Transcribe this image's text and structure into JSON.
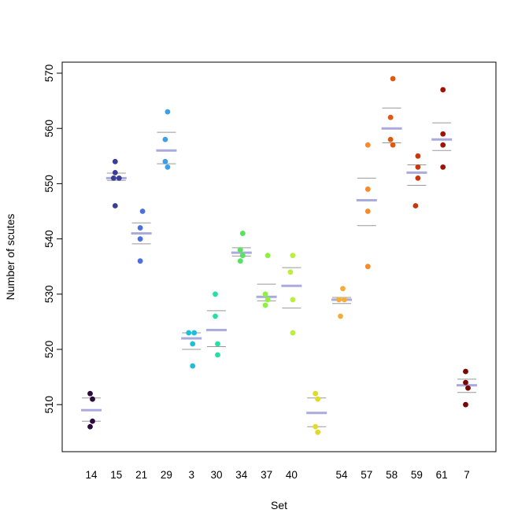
{
  "chart_data": {
    "type": "strip",
    "title": "",
    "xlabel": "Set",
    "ylabel": "Number of scutes",
    "ylim": [
      502,
      572
    ],
    "yticks": [
      510,
      520,
      530,
      540,
      550,
      560,
      570
    ],
    "grid": false,
    "legend": "none",
    "mean_line_color": "#aaaadd",
    "sd_line_color": "#999999",
    "groups": [
      {
        "label": "14",
        "color": "#2d0a3c",
        "points": [
          506,
          507,
          511,
          512
        ],
        "mean": 509,
        "sd_low": 507,
        "sd_high": 511.2
      },
      {
        "label": "15",
        "color": "#3b3e96",
        "points": [
          546,
          551,
          551,
          552,
          554
        ],
        "mean": 551,
        "sd_low": 550.6,
        "sd_high": 551.9
      },
      {
        "label": "21",
        "color": "#4a6fe3",
        "points": [
          536,
          540,
          542,
          545
        ],
        "mean": 541,
        "sd_low": 539.1,
        "sd_high": 542.9
      },
      {
        "label": "29",
        "color": "#3c9fe8",
        "points": [
          553,
          554,
          558,
          563
        ],
        "mean": 556,
        "sd_low": 553.6,
        "sd_high": 559.3
      },
      {
        "label": "3",
        "color": "#1fbed6",
        "points": [
          517,
          521,
          523,
          523
        ],
        "mean": 522,
        "sd_low": 520,
        "sd_high": 523
      },
      {
        "label": "30",
        "color": "#26dfa5",
        "points": [
          519,
          521,
          526,
          530
        ],
        "mean": 523.5,
        "sd_low": 520.5,
        "sd_high": 527
      },
      {
        "label": "34",
        "color": "#52e35f",
        "points": [
          536,
          537,
          538,
          541
        ],
        "mean": 537.5,
        "sd_low": 536.9,
        "sd_high": 538.4
      },
      {
        "label": "37",
        "color": "#8ef23c",
        "points": [
          528,
          529,
          530,
          537
        ],
        "mean": 529.5,
        "sd_low": 528.8,
        "sd_high": 531.8
      },
      {
        "label": "40",
        "color": "#b8f03a",
        "points": [
          523,
          529,
          534,
          537
        ],
        "mean": 531.5,
        "sd_low": 527.5,
        "sd_high": 534.8
      },
      {
        "label": "",
        "color": "#e0da29",
        "points": [
          505,
          506,
          511,
          512
        ],
        "mean": 508.5,
        "sd_low": 506,
        "sd_high": 511.2
      },
      {
        "label": "54",
        "color": "#f4ad37",
        "points": [
          526,
          529,
          529,
          531
        ],
        "mean": 529,
        "sd_low": 528.3,
        "sd_high": 529.4
      },
      {
        "label": "57",
        "color": "#f88a2a",
        "points": [
          535,
          545,
          549,
          557
        ],
        "mean": 547,
        "sd_low": 542.4,
        "sd_high": 551
      },
      {
        "label": "58",
        "color": "#e4570f",
        "points": [
          557,
          558,
          562,
          569
        ],
        "mean": 560,
        "sd_low": 557.4,
        "sd_high": 563.7
      },
      {
        "label": "59",
        "color": "#c8360a",
        "points": [
          546,
          551,
          553,
          555
        ],
        "mean": 552,
        "sd_low": 549.7,
        "sd_high": 553.4
      },
      {
        "label": "61",
        "color": "#9f1405",
        "points": [
          553,
          557,
          559,
          567
        ],
        "mean": 558,
        "sd_low": 556,
        "sd_high": 561
      },
      {
        "label": "7",
        "color": "#7a0403",
        "points": [
          510,
          513,
          514,
          516
        ],
        "mean": 513.5,
        "sd_low": 512.2,
        "sd_high": 514.6
      }
    ]
  }
}
